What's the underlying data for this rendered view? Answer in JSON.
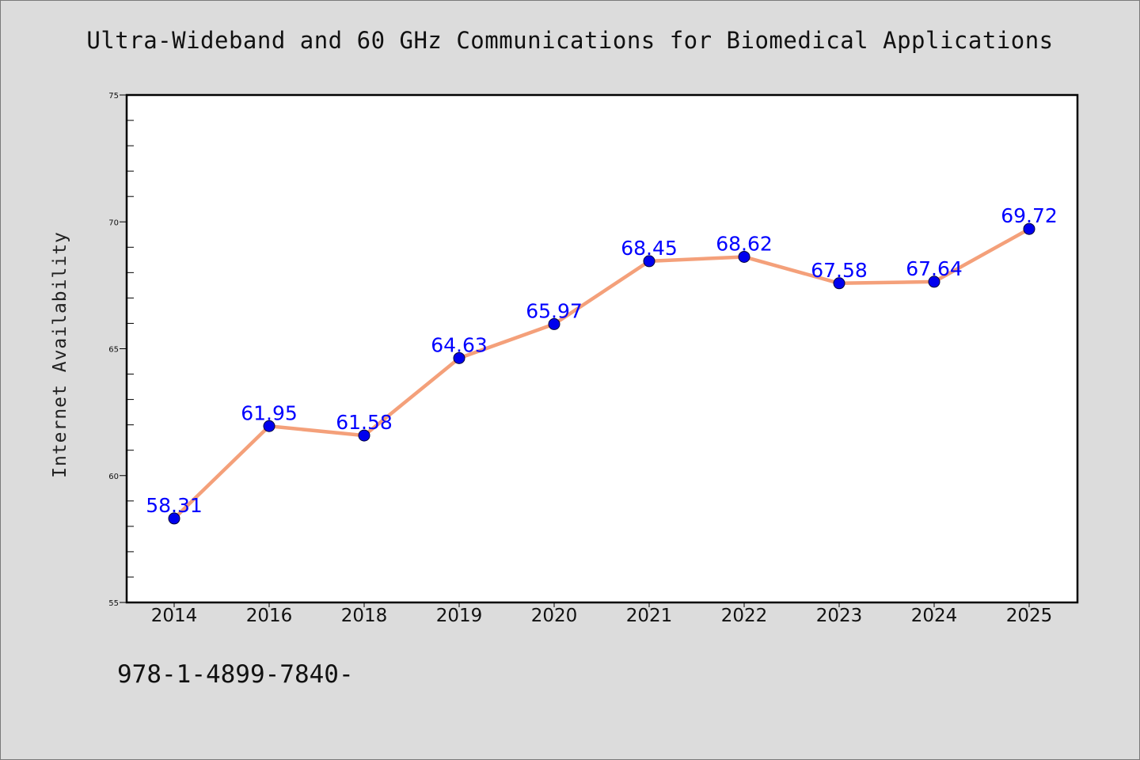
{
  "chart_data": {
    "type": "line",
    "title": "Ultra-Wideband and 60 GHz Communications for Biomedical Applications",
    "xlabel": "",
    "ylabel": "Internet Availability",
    "categories": [
      "2014",
      "2016",
      "2018",
      "2019",
      "2020",
      "2021",
      "2022",
      "2023",
      "2024",
      "2025"
    ],
    "values": [
      58.31,
      61.95,
      61.58,
      64.63,
      65.97,
      68.45,
      68.62,
      67.58,
      67.64,
      69.72
    ],
    "data_labels": [
      "58.31",
      "61.95",
      "61.58",
      "64.63",
      "65.97",
      "68.45",
      "68.62",
      "67.58",
      "67.64",
      "69.72"
    ],
    "ylim": [
      55,
      75
    ],
    "y_ticks": [
      "55",
      "60",
      "65",
      "70",
      "75"
    ],
    "grid": false,
    "line_color": "#f4a07a",
    "marker_color": "#0000ee",
    "label_color": "#0000ff",
    "plot_background": "#ffffff",
    "page_background": "#dcdcdc"
  },
  "footer": {
    "code": "978-1-4899-7840-"
  }
}
